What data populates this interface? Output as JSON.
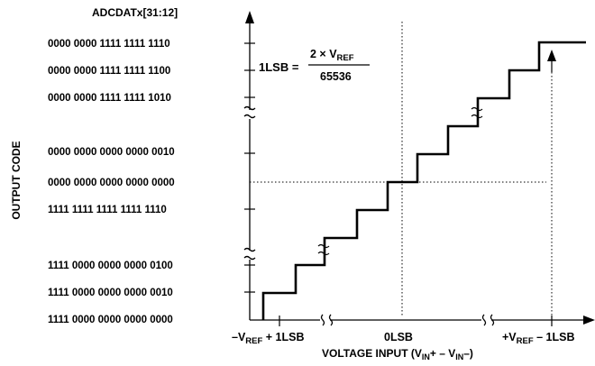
{
  "register_label": "ADCDATx[31:12]",
  "y_axis_title": "OUTPUT CODE",
  "output_codes": [
    "0000 0000 1111 1111 1110",
    "0000 0000 1111 1111 1100",
    "0000 0000 1111 1111 1010",
    "0000 0000 0000 0000 0010",
    "0000 0000 0000 0000 0000",
    "1111 1111 1111 1111 1110",
    "1111 0000 0000 0000 0100",
    "1111 0000 0000 0000 0010",
    "1111 0000 0000 0000 0000"
  ],
  "formula": {
    "lhs": "1LSB =",
    "numerator_prefix": "2 × V",
    "numerator_sub": "REF",
    "denominator": "65536"
  },
  "x_labels": {
    "left": {
      "pre": "–V",
      "sub": "REF",
      "post": " + 1LSB"
    },
    "center": "0LSB",
    "right": {
      "pre": "+V",
      "sub": "REF",
      "post": " – 1LSB"
    }
  },
  "x_axis_title": {
    "text1": "VOLTAGE INPUT (V",
    "sub1": "IN",
    "text2": "+ – V",
    "sub2": "IN",
    "text3": "–)"
  }
}
